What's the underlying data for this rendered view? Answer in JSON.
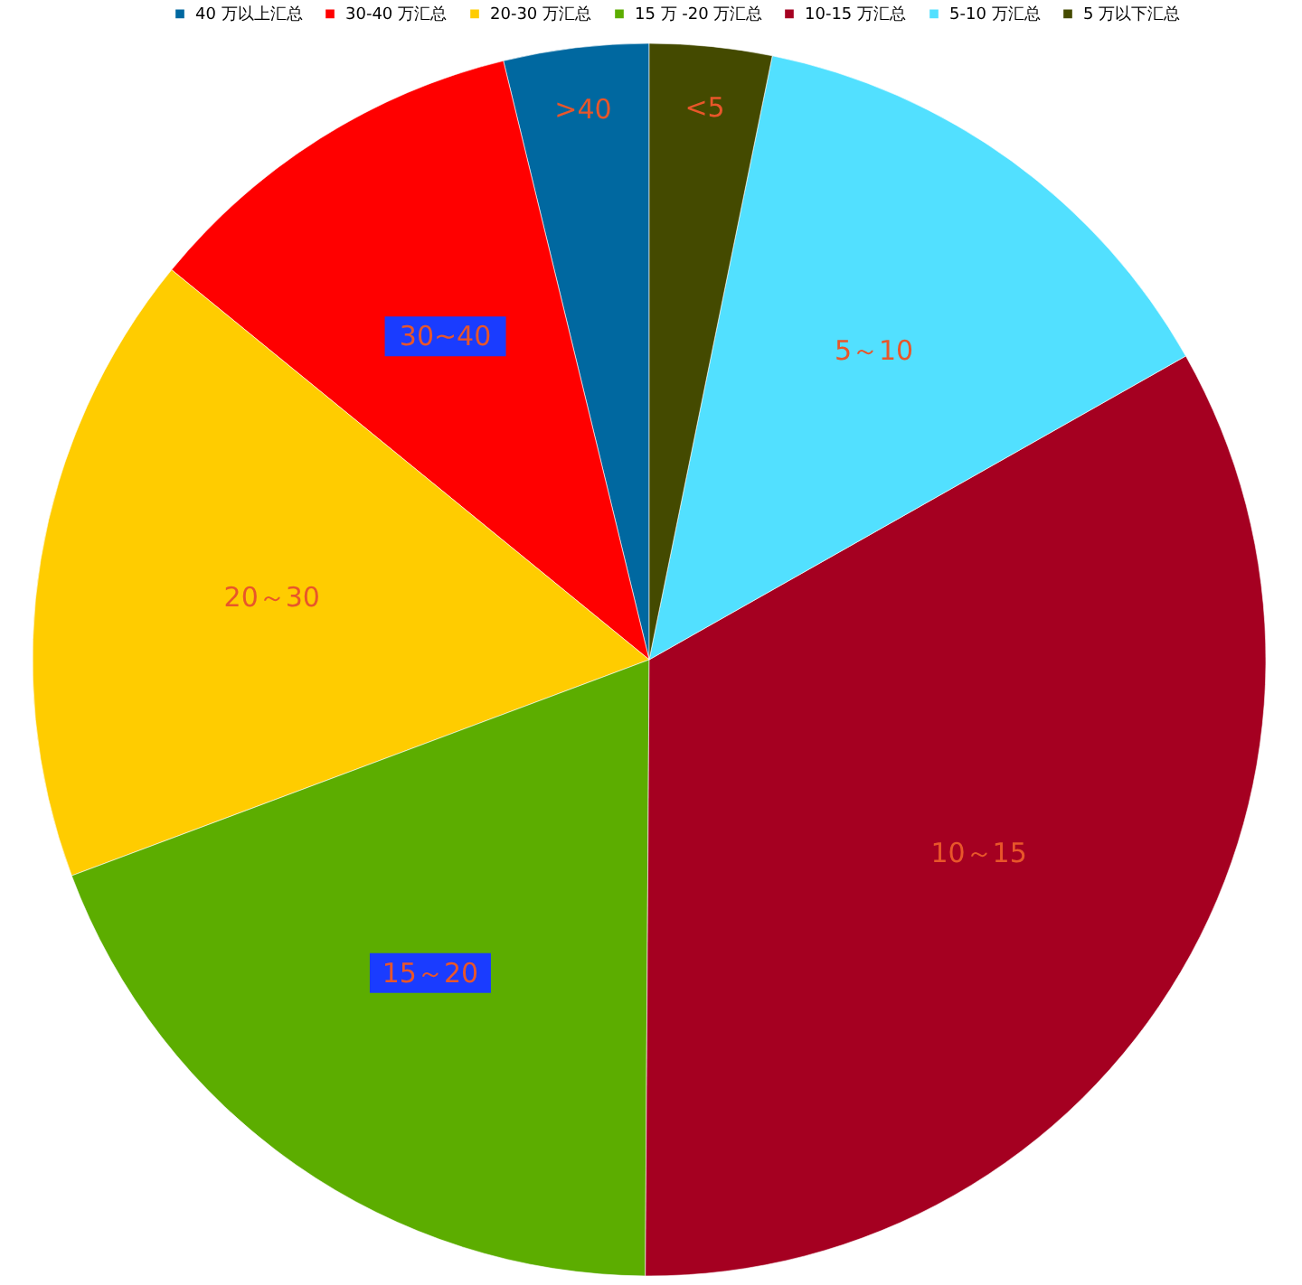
{
  "chart_data": {
    "type": "pie",
    "categories": [
      "40 万以上汇总",
      "30-40 万汇总",
      "20-30 万汇总",
      "15 万 -20 万汇总",
      "10-15 万汇总",
      "5-10 万汇总",
      "5 万以下汇总"
    ],
    "values": [
      3.8,
      10.3,
      16.6,
      19.2,
      33.3,
      13.6,
      3.2
    ],
    "colors": [
      "#0068a0",
      "#ff0000",
      "#ffcc00",
      "#5cad00",
      "#a50021",
      "#52e0ff",
      "#444a00"
    ],
    "legend": "top",
    "annotations": [
      {
        "text": ">40",
        "x": "40 万以上汇总"
      },
      {
        "text": "30~40",
        "x": "30-40 万汇总"
      },
      {
        "text": "20～30",
        "x": "20-30 万汇总"
      },
      {
        "text": "15～20",
        "x": "15 万 -20 万汇总"
      },
      {
        "text": "10～15",
        "x": "10-15 万汇总"
      },
      {
        "text": "5～10",
        "x": "5-10 万汇总"
      },
      {
        "text": "<5",
        "x": "5 万以下汇总"
      }
    ]
  }
}
